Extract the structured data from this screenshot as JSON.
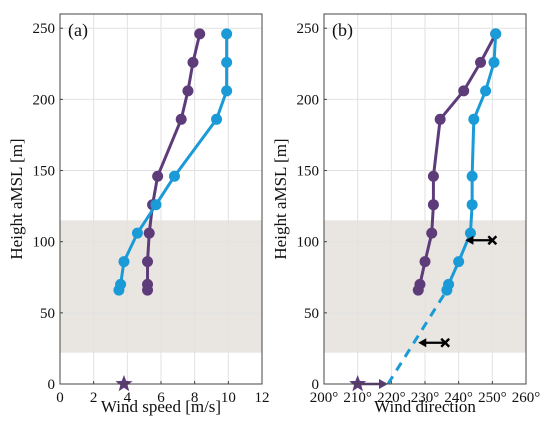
{
  "colors": {
    "purple": "#5e3c7a",
    "blue": "#1a9ad6",
    "band": "#e9e6e1",
    "grid": "#e2e2e2",
    "frame": "#444444",
    "marker": "#000000"
  },
  "shared_y": {
    "label": "Height aMSL [m]",
    "range": [
      0,
      260
    ],
    "ticks": [
      0,
      50,
      100,
      150,
      200,
      250
    ]
  },
  "band": {
    "from": 22,
    "to": 115
  },
  "chart_data": [
    {
      "type": "line",
      "panel_label": "(a)",
      "xlabel": "Wind speed [m/s]",
      "xlim": [
        0,
        12
      ],
      "xticks": [
        0,
        2,
        4,
        6,
        8,
        10,
        12
      ],
      "xtick_labels": [
        "0",
        "2",
        "4",
        "6",
        "8",
        "10",
        "12"
      ],
      "grid": true,
      "series": [
        {
          "color": "purple",
          "points": [
            [
              5.2,
              66
            ],
            [
              5.2,
              70
            ],
            [
              5.2,
              86
            ],
            [
              5.3,
              106
            ],
            [
              5.5,
              126
            ],
            [
              5.8,
              146
            ],
            [
              7.2,
              186
            ],
            [
              7.6,
              206
            ],
            [
              7.9,
              226
            ],
            [
              8.3,
              246
            ]
          ]
        },
        {
          "color": "blue",
          "points": [
            [
              3.5,
              66
            ],
            [
              3.6,
              70
            ],
            [
              3.8,
              86
            ],
            [
              4.6,
              106
            ],
            [
              5.7,
              126
            ],
            [
              6.8,
              146
            ],
            [
              9.3,
              186
            ],
            [
              9.9,
              206
            ],
            [
              9.9,
              226
            ],
            [
              9.9,
              246
            ]
          ]
        }
      ],
      "star": {
        "x": 3.8,
        "y": 0,
        "color": "purple"
      }
    },
    {
      "type": "line",
      "panel_label": "(b)",
      "xlabel": "Wind direction",
      "xlim": [
        200,
        260
      ],
      "xticks": [
        200,
        210,
        220,
        230,
        240,
        250,
        260
      ],
      "xtick_labels": [
        "200°",
        "210°",
        "220°",
        "230°",
        "240°",
        "250°",
        "260°"
      ],
      "grid": true,
      "series": [
        {
          "color": "purple",
          "points": [
            [
              228,
              66
            ],
            [
              228.5,
              70
            ],
            [
              230,
              86
            ],
            [
              232,
              106
            ],
            [
              232.5,
              126
            ],
            [
              232.5,
              146
            ],
            [
              234.5,
              186
            ],
            [
              241.5,
              206
            ],
            [
              246.5,
              226
            ],
            [
              251,
              246
            ]
          ]
        },
        {
          "color": "blue",
          "points": [
            [
              236.5,
              66
            ],
            [
              237,
              70
            ],
            [
              240,
              86
            ],
            [
              243.5,
              106
            ],
            [
              244,
              126
            ],
            [
              244,
              146
            ],
            [
              244.5,
              186
            ],
            [
              248,
              206
            ],
            [
              250.5,
              226
            ],
            [
              251,
              246
            ]
          ]
        }
      ],
      "dashed_line": {
        "color": "blue",
        "points": [
          [
            219,
            0
          ],
          [
            236.5,
            66
          ]
        ]
      },
      "star": {
        "x": 210,
        "y": 0,
        "color": "purple",
        "arrow_to": 219
      },
      "arrows": [
        {
          "from": 250,
          "to": 242,
          "y": 101,
          "color": "marker"
        },
        {
          "from": 236,
          "to": 228,
          "y": 29,
          "color": "marker"
        }
      ]
    }
  ]
}
